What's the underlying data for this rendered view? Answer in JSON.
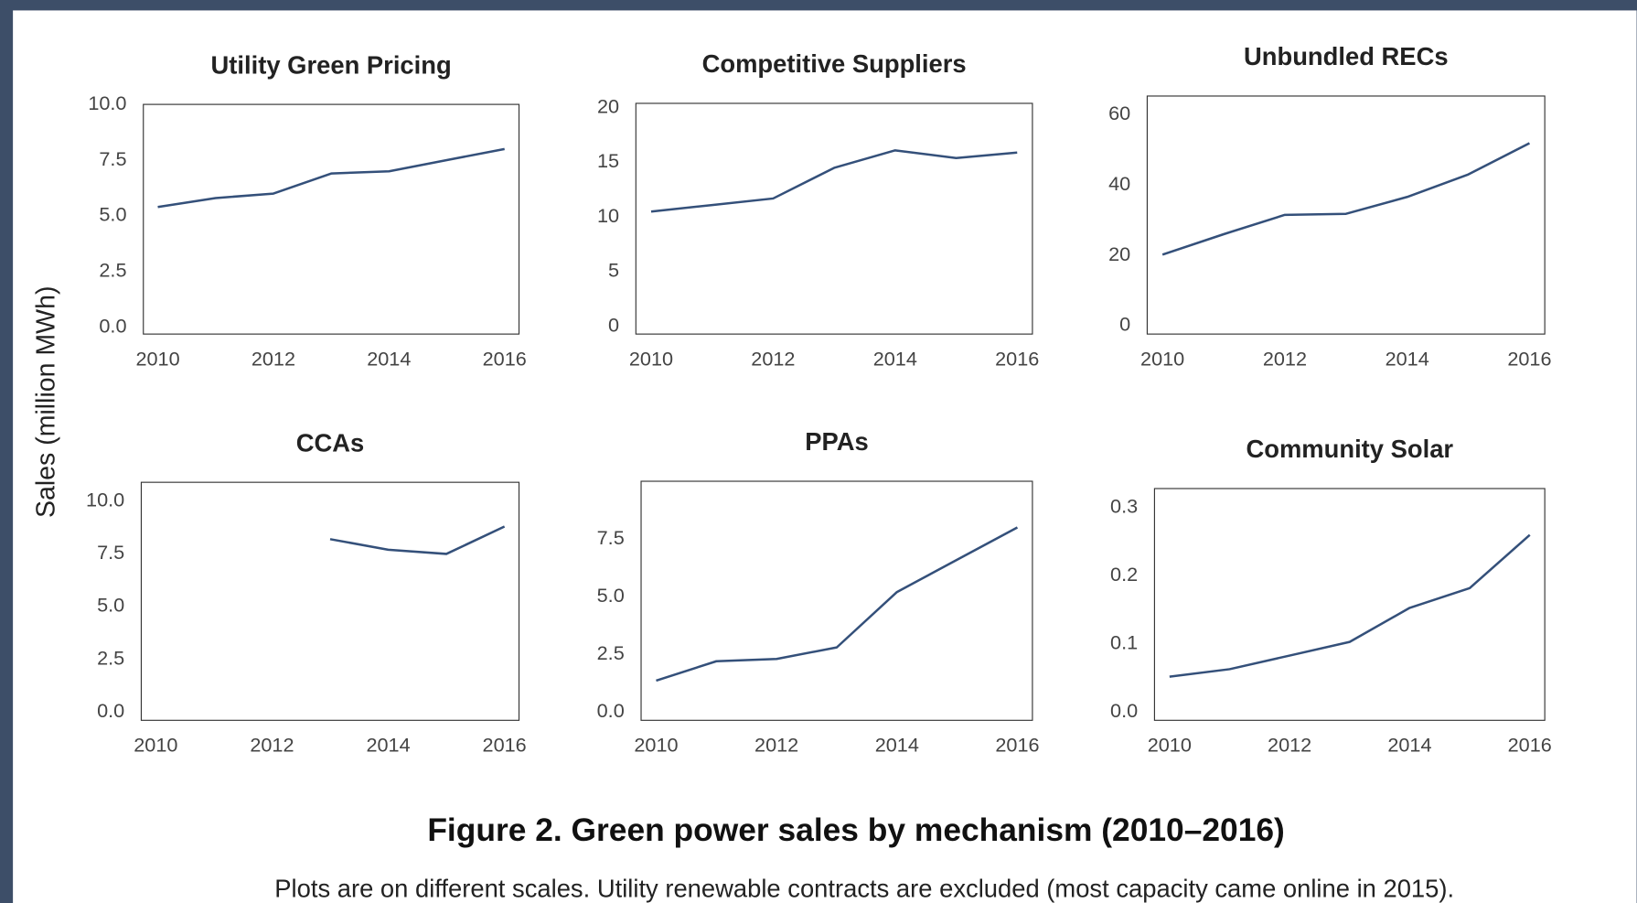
{
  "chart_data": [
    {
      "type": "line",
      "title": "Utility Green Pricing",
      "x": [
        2010,
        2011,
        2012,
        2013,
        2014,
        2015,
        2016
      ],
      "series": [
        {
          "color": "#34507a",
          "values": [
            5.4,
            5.8,
            6.0,
            6.9,
            7.0,
            7.5,
            8.0
          ]
        }
      ],
      "xlim": [
        2009.75,
        2016.25
      ],
      "xticks": [
        2010,
        2012,
        2014,
        2016
      ],
      "ylim": [
        -0.3,
        10.0
      ],
      "yticks": [
        {
          "value": 0,
          "label": "0.0"
        },
        2.5,
        {
          "value": 5,
          "label": "5.0"
        },
        7.5,
        {
          "value": 10,
          "label": "10.0"
        }
      ]
    },
    {
      "type": "line",
      "title": "Competitive Suppliers",
      "x": [
        2010,
        2011,
        2012,
        2013,
        2014,
        2015,
        2016
      ],
      "series": [
        {
          "color": "#34507a",
          "values": [
            10.5,
            11.1,
            11.7,
            14.5,
            16.1,
            15.4,
            15.9
          ]
        }
      ],
      "xlim": [
        2009.75,
        2016.25
      ],
      "xticks": [
        2010,
        2012,
        2014,
        2016
      ],
      "ylim": [
        -0.7,
        20.4
      ],
      "yticks": [
        0,
        5,
        10,
        15,
        20
      ]
    },
    {
      "type": "line",
      "title": "Unbundled RECs",
      "x": [
        2010,
        2011,
        2012,
        2013,
        2014,
        2015,
        2016
      ],
      "series": [
        {
          "color": "#34507a",
          "values": [
            20.2,
            26,
            31.5,
            31.8,
            36.6,
            43,
            51.9
          ]
        }
      ],
      "xlim": [
        2009.75,
        2016.25
      ],
      "xticks": [
        2010,
        2012,
        2014,
        2016
      ],
      "ylim": [
        -2.4,
        65.3
      ],
      "yticks": [
        0,
        20,
        40,
        60
      ]
    },
    {
      "type": "line",
      "title": "CCAs",
      "x": [
        2010,
        2011,
        2012,
        2013,
        2014,
        2015,
        2016
      ],
      "series": [
        {
          "color": "#34507a",
          "values": [
            null,
            null,
            null,
            8.2,
            7.7,
            7.5,
            8.8
          ]
        }
      ],
      "xlim": [
        2009.75,
        2016.25
      ],
      "xticks": [
        2010,
        2012,
        2014,
        2016
      ],
      "ylim": [
        -0.4,
        10.9
      ],
      "yticks": [
        {
          "value": 0,
          "label": "0.0"
        },
        2.5,
        {
          "value": 5,
          "label": "5.0"
        },
        7.5,
        {
          "value": 10,
          "label": "10.0"
        }
      ]
    },
    {
      "type": "line",
      "title": "PPAs",
      "x": [
        2010,
        2011,
        2012,
        2013,
        2014,
        2015,
        2016
      ],
      "series": [
        {
          "color": "#34507a",
          "values": [
            1.36,
            2.2,
            2.3,
            2.8,
            5.2,
            6.6,
            8.0
          ]
        }
      ],
      "xlim": [
        2009.75,
        2016.25
      ],
      "xticks": [
        2010,
        2012,
        2014,
        2016
      ],
      "ylim": [
        -0.36,
        10.0
      ],
      "yticks": [
        {
          "value": 0,
          "label": "0.0"
        },
        2.5,
        {
          "value": 5,
          "label": "5.0"
        },
        7.5
      ]
    },
    {
      "type": "line",
      "title": "Community Solar",
      "x": [
        2010,
        2011,
        2012,
        2013,
        2014,
        2015,
        2016
      ],
      "series": [
        {
          "color": "#34507a",
          "values": [
            0.052,
            0.063,
            0.083,
            0.103,
            0.153,
            0.182,
            0.26
          ]
        }
      ],
      "xlim": [
        2009.75,
        2016.25
      ],
      "xticks": [
        2010,
        2012,
        2014,
        2016
      ],
      "ylim": [
        -0.012,
        0.328
      ],
      "yticks": [
        {
          "value": 0,
          "label": "0.0"
        },
        0.1,
        0.2,
        0.3
      ]
    }
  ],
  "figure": {
    "ylabel": "Sales (million MWh)",
    "caption": "Figure 2. Green power sales by mechanism (2010–2016)",
    "note": "Plots are on different scales. Utility renewable contracts are excluded (most capacity came online in 2015)."
  }
}
